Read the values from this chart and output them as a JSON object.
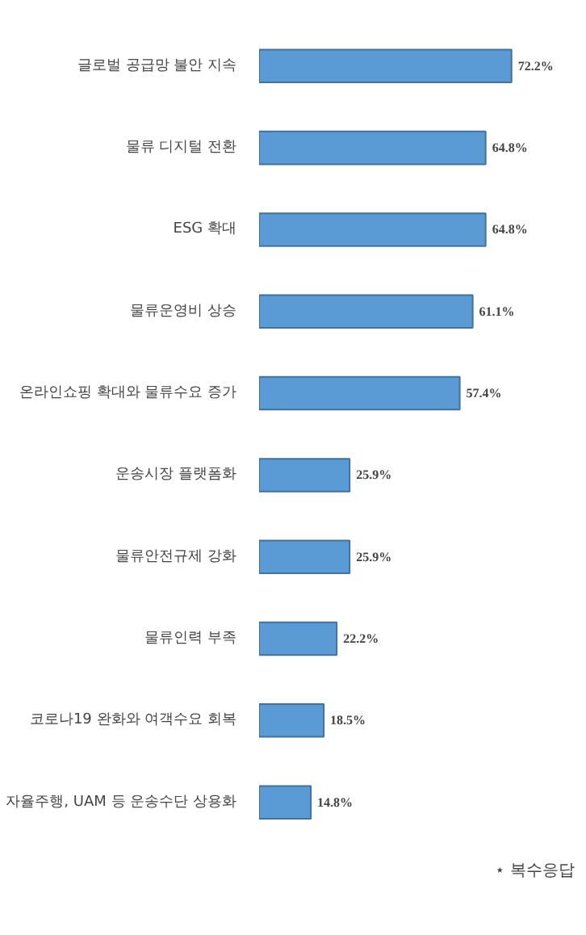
{
  "chart_data": {
    "type": "bar",
    "orientation": "horizontal",
    "categories": [
      "글로벌 공급망 불안 지속",
      "물류 디지털 전환",
      "ESG 확대",
      "물류운영비 상승",
      "온라인쇼핑 확대와 물류수요 증가",
      "운송시장 플랫폼화",
      "물류안전규제 강화",
      "물류인력 부족",
      "코로나19 완화와 여객수요 회복",
      "자율주행, UAM 등 운송수단 상용화"
    ],
    "values": [
      72.2,
      64.8,
      64.8,
      61.1,
      57.4,
      25.9,
      25.9,
      22.2,
      18.5,
      14.8
    ],
    "value_labels": [
      "72.2%",
      "64.8%",
      "64.8%",
      "61.1%",
      "57.4%",
      "25.9%",
      "25.9%",
      "22.2%",
      "18.5%",
      "14.8%"
    ],
    "color": "#5b9bd5",
    "annotations": [
      "⋆ 복수응답"
    ]
  }
}
